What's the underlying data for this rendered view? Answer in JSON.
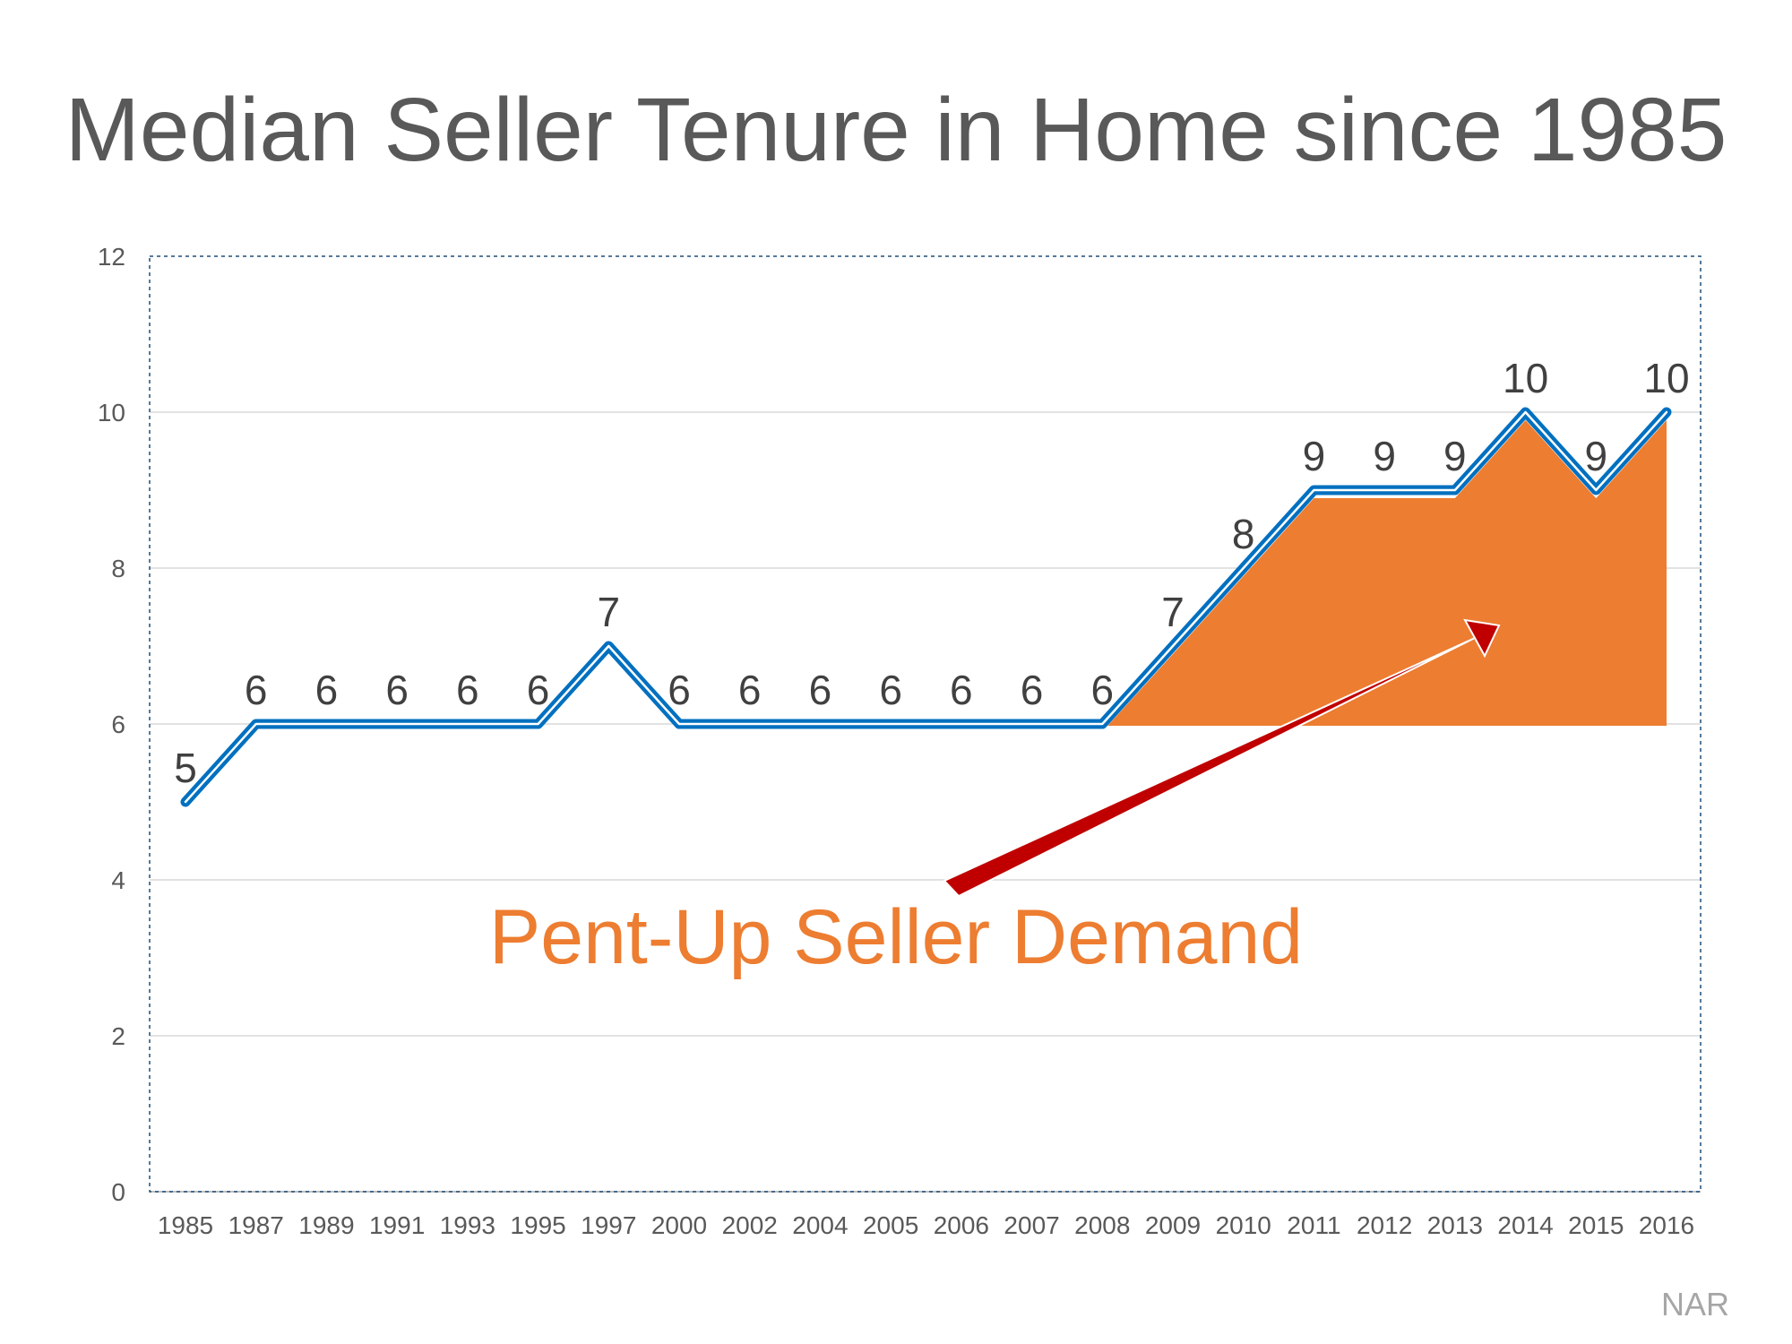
{
  "chart_data": {
    "type": "line",
    "title": "Median Seller Tenure in Home since 1985",
    "categories": [
      "1985",
      "1987",
      "1989",
      "1991",
      "1993",
      "1995",
      "1997",
      "2000",
      "2002",
      "2004",
      "2005",
      "2006",
      "2007",
      "2008",
      "2009",
      "2010",
      "2011",
      "2012",
      "2013",
      "2014",
      "2015",
      "2016"
    ],
    "series": [
      {
        "values": [
          5,
          6,
          6,
          6,
          6,
          6,
          7,
          6,
          6,
          6,
          6,
          6,
          6,
          6,
          7,
          8,
          9,
          9,
          9,
          10,
          9,
          10
        ],
        "color": "#0070c0"
      }
    ],
    "data_labels": [
      "5",
      "6",
      "6",
      "6",
      "6",
      "6",
      "7",
      "6",
      "6",
      "6",
      "6",
      "6",
      "6",
      "6",
      "7",
      "8",
      "9",
      "9",
      "9",
      "10",
      "9",
      "10"
    ],
    "ylim": [
      0,
      12
    ],
    "yticks": [
      0,
      2,
      4,
      6,
      8,
      10,
      12
    ],
    "ytick_labels": [
      "0",
      "2",
      "4",
      "6",
      "8",
      "10",
      "12"
    ],
    "grid": true,
    "highlight_area": {
      "from_category": "2008",
      "to_category": "2016",
      "baseline": 6,
      "color": "#ed7d31"
    },
    "annotation": {
      "text": "Pent-Up Seller Demand",
      "color": "#ed7d31",
      "arrow_color": "#c00000"
    }
  },
  "source": "NAR"
}
